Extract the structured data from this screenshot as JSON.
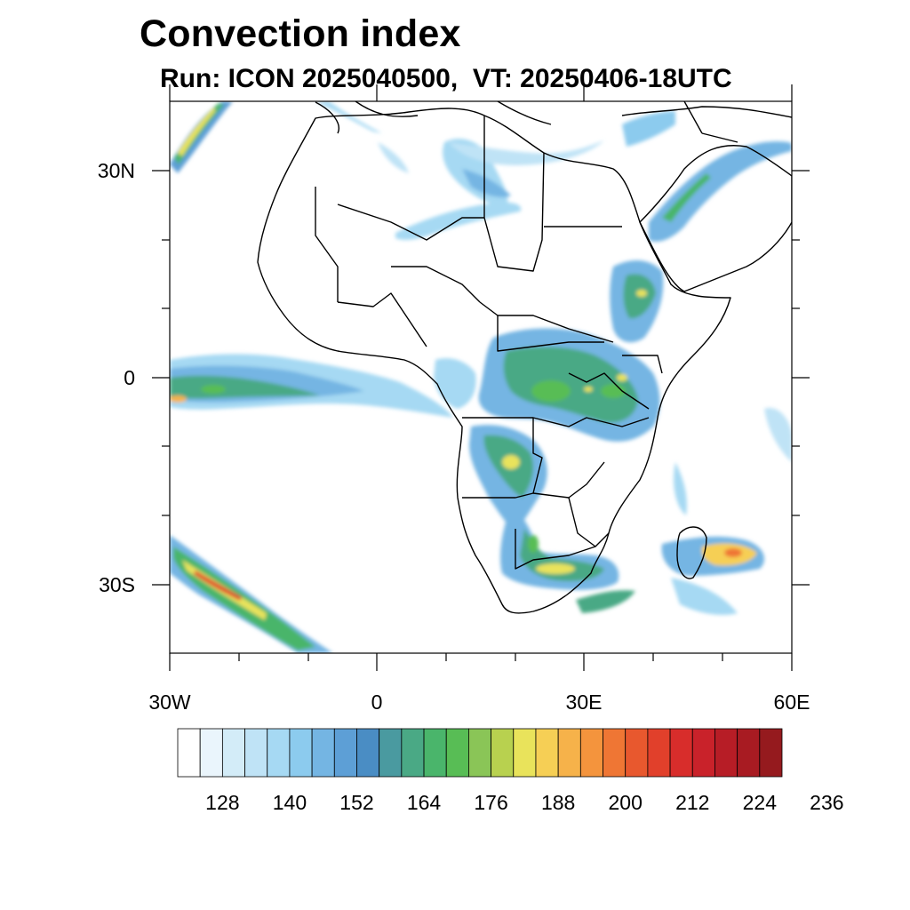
{
  "title": "Convection index",
  "subtitle": "Run: ICON 2025040500,  VT: 20250406-18UTC",
  "map": {
    "lon_range": [
      -30,
      60
    ],
    "lat_range": [
      -40,
      40
    ],
    "x_tick_labels": [
      "30W",
      "0",
      "30E",
      "60E"
    ],
    "y_tick_labels": [
      "30N",
      "0",
      "30S"
    ]
  },
  "colorbar": {
    "colors": [
      "#ffffff",
      "#eaf5fc",
      "#d3ecf8",
      "#bfe3f6",
      "#a6d9f3",
      "#8ccbee",
      "#74b5e3",
      "#5d9fd6",
      "#4a8dc4",
      "#4a9aa0",
      "#4aa985",
      "#4ab56b",
      "#58bd55",
      "#8ac557",
      "#b8d14f",
      "#e9e35b",
      "#f6cf55",
      "#f6b24a",
      "#f4943d",
      "#ef7634",
      "#e8582e",
      "#e1402b",
      "#d82d2b",
      "#c9222a",
      "#b71d26",
      "#a81b22",
      "#951a1e"
    ],
    "labels": [
      "128",
      "140",
      "152",
      "164",
      "176",
      "188",
      "200",
      "212",
      "224",
      "236"
    ]
  }
}
